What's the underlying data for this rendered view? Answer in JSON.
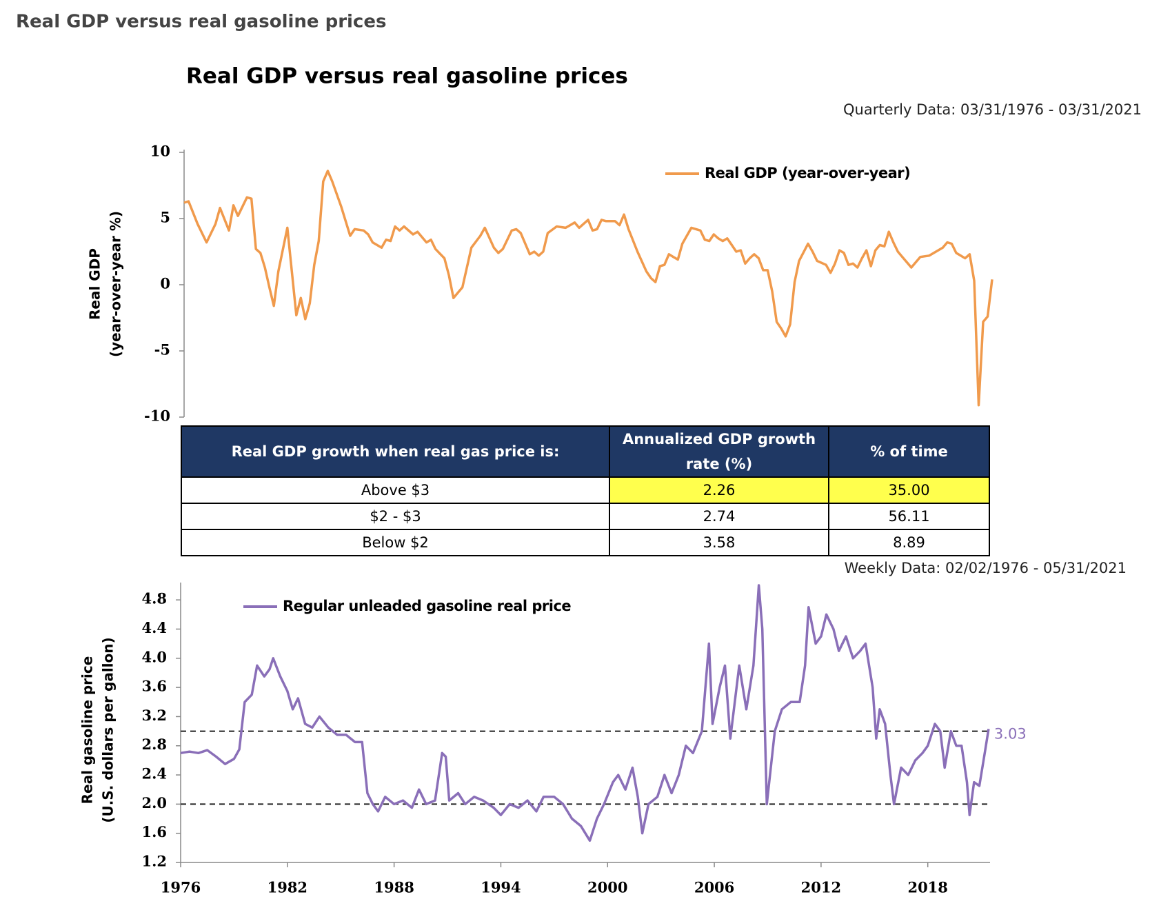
{
  "page_title": "Real GDP versus real gasoline prices",
  "chart_title": "Real GDP versus real gasoline prices",
  "table": {
    "header": [
      "Real GDP growth when real gas price is:",
      "Annualized GDP growth rate (%)",
      "% of time"
    ],
    "rows": [
      [
        "Above $3",
        "2.26",
        "35.00"
      ],
      [
        "$2 - $3",
        "2.74",
        "56.11"
      ],
      [
        "Below $2",
        "3.58",
        "8.89"
      ]
    ]
  },
  "chart_data": [
    {
      "type": "line",
      "subtitle": "Quarterly Data: 03/31/1976 - 03/31/2021",
      "y_label": [
        "Real GDP",
        "(year-over-year %)"
      ],
      "xlim": [
        1976,
        2021
      ],
      "ylim": [
        -10,
        10
      ],
      "yticks": [
        10,
        5,
        0,
        -5,
        -10
      ],
      "grid": false,
      "legend": "upper right",
      "x": [
        1976.0,
        1976.25,
        1976.75,
        1977.25,
        1977.75,
        1978.0,
        1978.5,
        1978.75,
        1979.0,
        1979.5,
        1979.75,
        1980.0,
        1980.25,
        1980.5,
        1980.75,
        1981.0,
        1981.25,
        1981.75,
        1982.0,
        1982.25,
        1982.5,
        1982.75,
        1983.0,
        1983.25,
        1983.5,
        1983.75,
        1984.0,
        1984.25,
        1984.75,
        1985.25,
        1985.5,
        1986.0,
        1986.25,
        1986.5,
        1987.0,
        1987.25,
        1987.5,
        1987.75,
        1988.0,
        1988.25,
        1988.75,
        1989.0,
        1989.5,
        1989.75,
        1990.0,
        1990.5,
        1990.75,
        1991.0,
        1991.5,
        1992.0,
        1992.5,
        1992.75,
        1993.25,
        1993.5,
        1993.75,
        1994.25,
        1994.5,
        1994.75,
        1995.25,
        1995.5,
        1995.75,
        1996.0,
        1996.25,
        1996.75,
        1997.25,
        1997.5,
        1997.75,
        1998.0,
        1998.5,
        1998.75,
        1999.0,
        1999.25,
        1999.5,
        2000.0,
        2000.25,
        2000.5,
        2000.75,
        2001.25,
        2001.75,
        2002.0,
        2002.25,
        2002.5,
        2002.75,
        2003.0,
        2003.25,
        2003.5,
        2003.75,
        2004.25,
        2004.75,
        2005.0,
        2005.25,
        2005.5,
        2005.75,
        2006.0,
        2006.25,
        2006.5,
        2006.75,
        2007.0,
        2007.25,
        2007.5,
        2007.75,
        2008.0,
        2008.25,
        2008.5,
        2008.75,
        2009.0,
        2009.25,
        2009.5,
        2009.75,
        2010.0,
        2010.25,
        2010.75,
        2011.0,
        2011.25,
        2011.75,
        2012.0,
        2012.25,
        2012.5,
        2012.75,
        2013.0,
        2013.25,
        2013.5,
        2013.75,
        2014.0,
        2014.25,
        2014.5,
        2014.75,
        2015.0,
        2015.25,
        2015.5,
        2015.75,
        2016.0,
        2016.5,
        2016.75,
        2017.0,
        2017.5,
        2017.75,
        2018.25,
        2018.5,
        2018.75,
        2019.0,
        2019.25,
        2019.5,
        2019.75,
        2020.0,
        2020.25,
        2020.5,
        2020.75,
        2021.0
      ],
      "series": [
        {
          "name": "Real GDP (year-over-year)",
          "color": "#f09a4c",
          "values": [
            6.2,
            6.3,
            4.6,
            3.2,
            4.6,
            5.8,
            4.1,
            6.0,
            5.2,
            6.6,
            6.5,
            2.7,
            2.4,
            1.3,
            -0.2,
            -1.6,
            1.0,
            4.3,
            1.0,
            -2.3,
            -1.0,
            -2.6,
            -1.4,
            1.5,
            3.3,
            7.8,
            8.6,
            7.8,
            5.9,
            3.7,
            4.2,
            4.1,
            3.8,
            3.2,
            2.8,
            3.4,
            3.3,
            4.4,
            4.1,
            4.4,
            3.8,
            4.0,
            3.2,
            3.4,
            2.7,
            2.0,
            0.7,
            -1.0,
            -0.2,
            2.8,
            3.7,
            4.3,
            2.8,
            2.4,
            2.7,
            4.1,
            4.2,
            3.9,
            2.3,
            2.5,
            2.2,
            2.5,
            3.9,
            4.4,
            4.3,
            4.5,
            4.7,
            4.3,
            4.9,
            4.1,
            4.2,
            4.9,
            4.8,
            4.8,
            4.5,
            5.3,
            4.2,
            2.5,
            1.0,
            0.5,
            0.2,
            1.4,
            1.5,
            2.3,
            2.1,
            1.9,
            3.1,
            4.3,
            4.1,
            3.4,
            3.3,
            3.8,
            3.5,
            3.3,
            3.5,
            3.0,
            2.5,
            2.6,
            1.6,
            2.0,
            2.3,
            2.0,
            1.1,
            1.1,
            -0.5,
            -2.8,
            -3.3,
            -3.9,
            -3.0,
            0.2,
            1.8,
            3.1,
            2.5,
            1.8,
            1.5,
            0.9,
            1.6,
            2.6,
            2.4,
            1.5,
            1.6,
            1.3,
            2.0,
            2.6,
            1.4,
            2.6,
            3.0,
            2.9,
            4.0,
            3.2,
            2.5,
            2.1,
            1.3,
            1.7,
            2.1,
            2.2,
            2.4,
            2.8,
            3.2,
            3.1,
            2.4,
            2.2,
            2.0,
            2.3,
            0.3,
            -9.1,
            -2.8,
            -2.4,
            0.4
          ]
        }
      ]
    },
    {
      "type": "line",
      "subtitle": "Weekly Data: 02/02/1976 - 05/31/2021",
      "y_label": [
        "Real gasoline price",
        "(U.S. dollars per gallon)"
      ],
      "xlim": [
        1976,
        2021.5
      ],
      "ylim": [
        1.2,
        5.0
      ],
      "xticks": [
        1976,
        1982,
        1988,
        1994,
        2000,
        2006,
        2012,
        2018
      ],
      "yticks": [
        1.2,
        1.6,
        {
          "value": 2,
          "label": "2.0"
        },
        2.4,
        2.8,
        3.2,
        3.6,
        {
          "value": 4,
          "label": "4.0"
        },
        4.4,
        4.8
      ],
      "grid": false,
      "legend": "upper left",
      "reference_lines": [
        2,
        3
      ],
      "label_last": true,
      "x": [
        1976.0,
        1976.5,
        1977.0,
        1977.5,
        1978.0,
        1978.5,
        1979.0,
        1979.3,
        1979.6,
        1980.0,
        1980.3,
        1980.7,
        1981.0,
        1981.2,
        1981.6,
        1982.0,
        1982.3,
        1982.6,
        1983.0,
        1983.4,
        1983.8,
        1984.3,
        1984.8,
        1985.3,
        1985.8,
        1986.2,
        1986.5,
        1986.8,
        1987.1,
        1987.5,
        1988.0,
        1988.5,
        1989.0,
        1989.4,
        1989.8,
        1990.3,
        1990.7,
        1990.9,
        1991.1,
        1991.6,
        1992.0,
        1992.5,
        1993.0,
        1993.6,
        1994.0,
        1994.5,
        1995.0,
        1995.5,
        1996.0,
        1996.4,
        1997.0,
        1997.5,
        1998.0,
        1998.5,
        1999.0,
        1999.4,
        1999.8,
        2000.3,
        2000.6,
        2001.0,
        2001.4,
        2001.7,
        2001.95,
        2002.3,
        2002.8,
        2003.2,
        2003.6,
        2004.0,
        2004.4,
        2004.8,
        2005.3,
        2005.7,
        2005.9,
        2006.3,
        2006.6,
        2006.9,
        2007.4,
        2007.8,
        2008.2,
        2008.5,
        2008.7,
        2008.95,
        2009.4,
        2009.8,
        2010.3,
        2010.8,
        2011.1,
        2011.3,
        2011.7,
        2012.0,
        2012.3,
        2012.7,
        2013.0,
        2013.4,
        2013.8,
        2014.2,
        2014.5,
        2014.9,
        2015.1,
        2015.3,
        2015.6,
        2015.9,
        2016.1,
        2016.5,
        2016.9,
        2017.3,
        2017.7,
        2018.0,
        2018.4,
        2018.7,
        2018.95,
        2019.3,
        2019.6,
        2019.9,
        2020.2,
        2020.35,
        2020.6,
        2020.9,
        2021.2,
        2021.42
      ],
      "series": [
        {
          "name": "Regular unleaded gasoline real price",
          "color": "#8a6fb8",
          "values": [
            2.7,
            2.72,
            2.7,
            2.74,
            2.65,
            2.55,
            2.62,
            2.75,
            3.4,
            3.5,
            3.9,
            3.75,
            3.85,
            4.0,
            3.75,
            3.55,
            3.3,
            3.45,
            3.1,
            3.05,
            3.2,
            3.05,
            2.95,
            2.95,
            2.85,
            2.85,
            2.15,
            2.0,
            1.9,
            2.1,
            2.0,
            2.05,
            1.95,
            2.2,
            2.0,
            2.05,
            2.7,
            2.65,
            2.05,
            2.15,
            2.0,
            2.1,
            2.05,
            1.95,
            1.85,
            2.0,
            1.95,
            2.05,
            1.9,
            2.1,
            2.1,
            2.0,
            1.8,
            1.7,
            1.5,
            1.8,
            2.0,
            2.3,
            2.4,
            2.2,
            2.5,
            2.1,
            1.6,
            2.0,
            2.1,
            2.4,
            2.15,
            2.4,
            2.8,
            2.7,
            3.0,
            4.2,
            3.1,
            3.6,
            3.9,
            2.9,
            3.9,
            3.3,
            3.9,
            5.0,
            4.4,
            2.0,
            3.0,
            3.3,
            3.4,
            3.4,
            3.9,
            4.7,
            4.2,
            4.3,
            4.6,
            4.4,
            4.1,
            4.3,
            4.0,
            4.1,
            4.2,
            3.6,
            2.9,
            3.3,
            3.1,
            2.4,
            2.0,
            2.5,
            2.4,
            2.6,
            2.7,
            2.8,
            3.1,
            3.0,
            2.5,
            3.0,
            2.8,
            2.8,
            2.3,
            1.85,
            2.3,
            2.25,
            2.7,
            3.03
          ]
        }
      ]
    }
  ]
}
